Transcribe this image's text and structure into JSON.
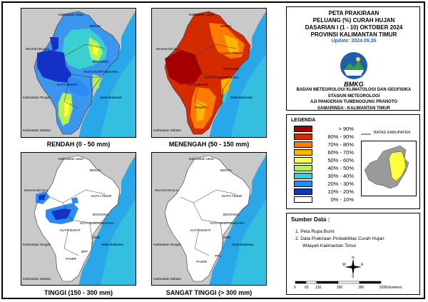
{
  "title": {
    "lines": [
      "PETA PRAKIRAAN",
      "PELUANG (%) CURAH HUJAN",
      "DASARIAN I (1 - 10) OKTOBER 2024",
      "PROVINSI KALIMANTAN TIMUR"
    ],
    "update": "Update: 2024.09.26"
  },
  "agency": {
    "logo_text": "BMKG",
    "lines": [
      "BADAN METEOROLOGI KLIMATOLOGI DAN GEOFISIKA",
      "STASIUN METEOROLOGI",
      "AJI PANGERAN TUMENGGUNG PRANOTO",
      "SAMARINDA - KALIMANTAN TIMUR"
    ]
  },
  "panels": [
    {
      "title": "RENDAH (0 - 50 mm)"
    },
    {
      "title": "MENENGAH (50 - 150 mm)"
    },
    {
      "title": "TINGGI (150 - 300 mm)"
    },
    {
      "title": "SANGAT TINGGI (> 300 mm)"
    }
  ],
  "map_labels": {
    "kaltara": "Kalimantan Utara",
    "berau": "BERAU",
    "mahakam": "MAHAKAM ULU",
    "kutim": "KUTAI TIMUR",
    "bontang": "BONTANG",
    "kukar": "KUTAI KARTANEGARA",
    "kubar": "KUTAI BARAT",
    "samarinda": "SMD",
    "kalteng": "Kalimantan Tengah",
    "selat": "Selat Makassar",
    "paser": "PASER",
    "ppu": "PPU",
    "bpp": "BPP",
    "kalsel": "Kalimantan Selatan"
  },
  "legend": {
    "title": "LEGENDA",
    "items": [
      {
        "label": "> 90%",
        "color": "#a50000"
      },
      {
        "label": "80% - 90%",
        "color": "#d42a00"
      },
      {
        "label": "70% - 80%",
        "color": "#ff7a00"
      },
      {
        "label": "60% - 70%",
        "color": "#ffb400"
      },
      {
        "label": "50% - 60%",
        "color": "#ffff3c"
      },
      {
        "label": "40% - 50%",
        "color": "#b4f05a"
      },
      {
        "label": "30% - 40%",
        "color": "#3ccfcf"
      },
      {
        "label": "20% - 30%",
        "color": "#2a8cf0"
      },
      {
        "label": "10% - 20%",
        "color": "#1432c8"
      },
      {
        "label": "0% - 10%",
        "color": "#ffffff"
      }
    ],
    "boundary_label": "BATAS KABUPATEN"
  },
  "sources": {
    "title": "Sumber Data :",
    "items": [
      "1. Peta Rupa Bumi",
      "2. Data Prakiraan Probabilitas Curah Hujan",
      "Wilayah Kalimantan Timur"
    ]
  },
  "compass": {
    "n": "N",
    "s": "S",
    "e": "E",
    "w": "W"
  },
  "scale": {
    "ticks": [
      "0",
      "65",
      "130",
      "260",
      "390",
      "520"
    ],
    "unit": "Kilometers"
  }
}
